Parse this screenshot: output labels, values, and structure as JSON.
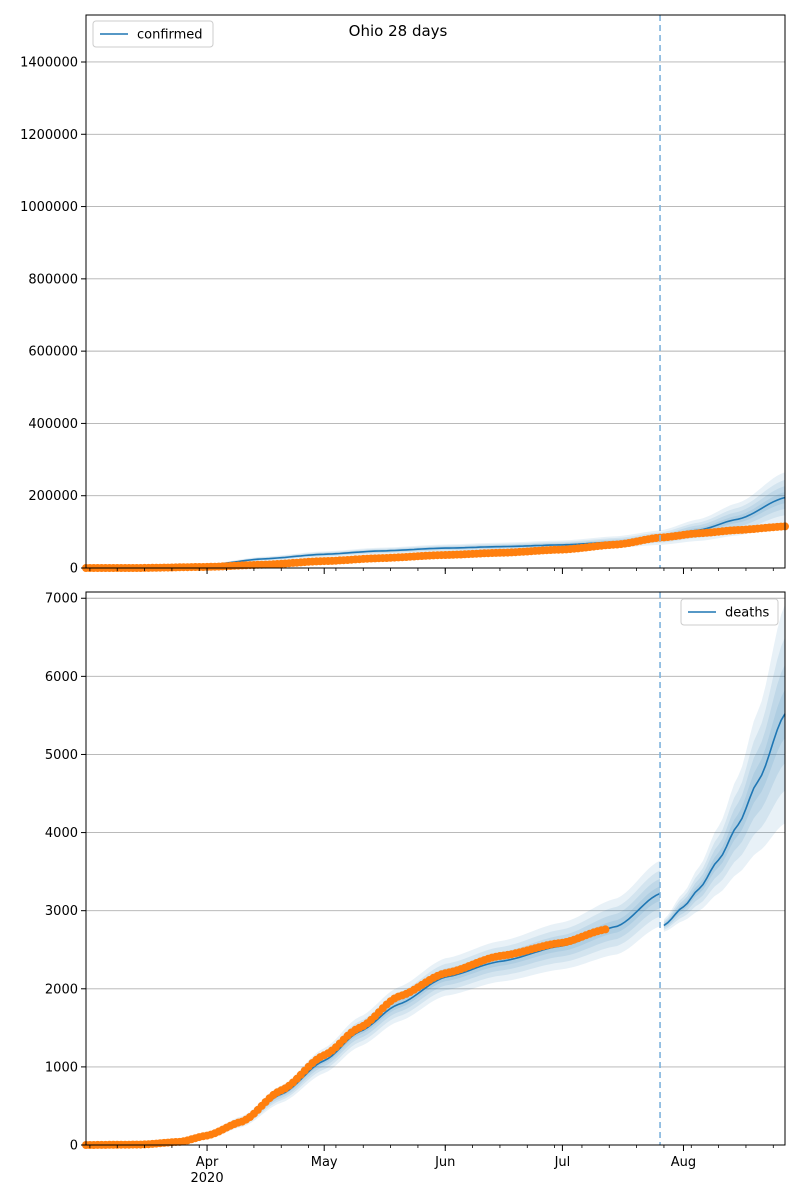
{
  "title": "Ohio 28 days",
  "colors": {
    "model": "#1f77b4",
    "observed": "#ff7f0e",
    "band": "#1f77b4",
    "forecast_line": "#7fb3dd",
    "grid": "#b0b0b0"
  },
  "x_axis": {
    "start": "2020-03-01",
    "end": "2020-08-27",
    "month_ticks": [
      {
        "date": "2020-04-01",
        "label": "Apr"
      },
      {
        "date": "2020-05-01",
        "label": "May"
      },
      {
        "date": "2020-06-01",
        "label": "Jun"
      },
      {
        "date": "2020-07-01",
        "label": "Jul"
      },
      {
        "date": "2020-08-01",
        "label": "Aug"
      }
    ],
    "year_label": "2020",
    "forecast_start": "2020-07-26"
  },
  "chart_data": [
    {
      "type": "line",
      "legend": "confirmed",
      "legend_position": "top-left",
      "ylim": [
        0,
        1530000
      ],
      "yticks": [
        0,
        200000,
        400000,
        600000,
        800000,
        1000000,
        1200000,
        1400000
      ],
      "grid": true,
      "model": {
        "x": [
          "2020-03-01",
          "2020-03-15",
          "2020-04-01",
          "2020-04-15",
          "2020-05-01",
          "2020-05-15",
          "2020-06-01",
          "2020-06-15",
          "2020-07-01",
          "2020-07-15",
          "2020-07-26",
          "2020-08-05",
          "2020-08-15",
          "2020-08-27"
        ],
        "y": [
          0,
          500,
          8000,
          25000,
          38000,
          47000,
          55000,
          59000,
          64000,
          72000,
          84000,
          105000,
          135000,
          195000
        ],
        "band_width": [
          0,
          300,
          3000,
          6000,
          8000,
          9000,
          10000,
          11000,
          12000,
          16000,
          20000,
          30000,
          45000,
          70000
        ]
      },
      "observed": {
        "x": [
          "2020-03-01",
          "2020-03-15",
          "2020-04-01",
          "2020-04-15",
          "2020-05-01",
          "2020-05-15",
          "2020-06-01",
          "2020-06-15",
          "2020-07-01",
          "2020-07-15",
          "2020-07-26",
          "2020-08-05",
          "2020-08-15",
          "2020-08-27"
        ],
        "y": [
          0,
          100,
          3000,
          9000,
          19000,
          27000,
          36000,
          42000,
          51000,
          65000,
          84000,
          96000,
          105000,
          115000
        ]
      }
    },
    {
      "type": "line",
      "legend": "deaths",
      "legend_position": "top-right",
      "ylim": [
        0,
        7080
      ],
      "yticks": [
        0,
        1000,
        2000,
        3000,
        4000,
        5000,
        6000,
        7000
      ],
      "grid": true,
      "model": {
        "x": [
          "2020-03-01",
          "2020-03-15",
          "2020-03-25",
          "2020-04-01",
          "2020-04-10",
          "2020-04-20",
          "2020-05-01",
          "2020-05-10",
          "2020-05-20",
          "2020-06-01",
          "2020-06-15",
          "2020-07-01",
          "2020-07-15",
          "2020-07-26"
        ],
        "y": [
          0,
          10,
          40,
          120,
          300,
          650,
          1080,
          1450,
          1800,
          2150,
          2350,
          2550,
          2800,
          3220
        ],
        "band_width": [
          0,
          5,
          20,
          40,
          70,
          110,
          160,
          190,
          220,
          240,
          260,
          300,
          360,
          420
        ]
      },
      "forecast": {
        "x": [
          "2020-07-27",
          "2020-08-01",
          "2020-08-05",
          "2020-08-10",
          "2020-08-15",
          "2020-08-20",
          "2020-08-27"
        ],
        "y": [
          2810,
          3050,
          3280,
          3650,
          4100,
          4650,
          5520
        ],
        "band_width": [
          80,
          180,
          280,
          430,
          620,
          900,
          1400
        ]
      },
      "observed": {
        "x": [
          "2020-03-01",
          "2020-03-15",
          "2020-03-25",
          "2020-04-01",
          "2020-04-10",
          "2020-04-20",
          "2020-05-01",
          "2020-05-10",
          "2020-05-20",
          "2020-06-01",
          "2020-06-15",
          "2020-07-01",
          "2020-07-12"
        ],
        "y": [
          0,
          5,
          40,
          120,
          300,
          700,
          1150,
          1500,
          1900,
          2200,
          2420,
          2590,
          2760
        ]
      }
    }
  ]
}
